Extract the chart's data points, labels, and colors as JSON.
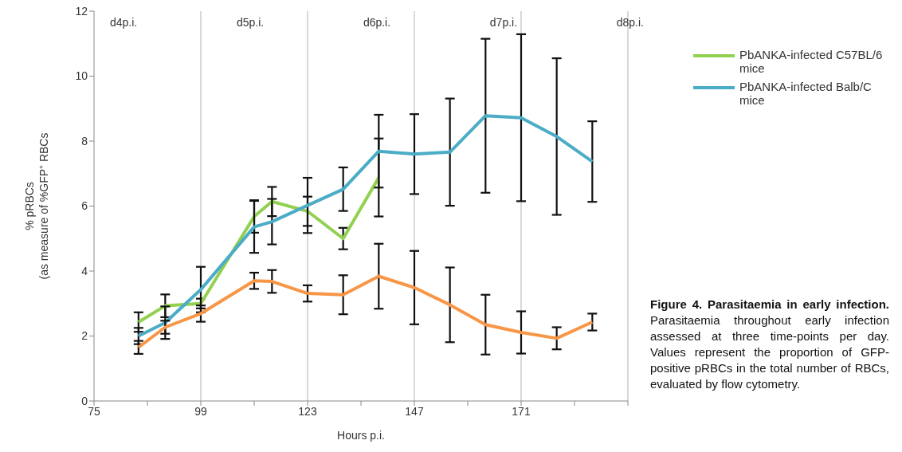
{
  "chart_data": {
    "type": "line",
    "xlabel": "Hours p.i.",
    "ylabel": "% pRBCs\n(as measure of %GFP⁺ RBCs",
    "x": [
      85,
      91,
      99,
      111,
      115,
      123,
      131,
      139,
      147,
      155,
      163,
      171,
      179,
      187
    ],
    "series": [
      {
        "name": "PbANKA-infected C57BL/6 mice",
        "color": "#92d050",
        "values": [
          2.43,
          2.93,
          3.0,
          5.68,
          6.14,
          5.84,
          5.0,
          6.88,
          null,
          null,
          null,
          null,
          null,
          null
        ],
        "errors": [
          0.3,
          0.35,
          0.15,
          0.5,
          0.45,
          0.45,
          0.33,
          1.2,
          null,
          null,
          null,
          null,
          null,
          null
        ]
      },
      {
        "name": "PbANKA-infected Balb/C mice",
        "color": "#4bacc6",
        "values": [
          2.0,
          2.41,
          3.43,
          5.36,
          5.52,
          6.02,
          6.52,
          7.69,
          7.6,
          7.66,
          8.78,
          8.72,
          8.14,
          7.37
        ],
        "errors": [
          0.25,
          0.5,
          0.7,
          0.8,
          0.7,
          0.85,
          0.67,
          1.12,
          1.23,
          1.65,
          2.37,
          2.57,
          2.41,
          1.24
        ]
      },
      {
        "color": "#f79646",
        "values": [
          1.65,
          2.27,
          2.69,
          3.7,
          3.68,
          3.31,
          3.27,
          3.84,
          3.49,
          2.96,
          2.35,
          2.11,
          1.93,
          2.43
        ],
        "errors": [
          0.2,
          0.2,
          0.25,
          0.25,
          0.35,
          0.25,
          0.6,
          1.0,
          1.13,
          1.15,
          0.92,
          0.65,
          0.34,
          0.26
        ]
      }
    ],
    "xlim": [
      75,
      195
    ],
    "xticks": [
      75,
      {
        "value": 87,
        "label": null
      },
      99,
      {
        "value": 111,
        "label": null
      },
      123,
      {
        "value": 135,
        "label": null
      },
      147,
      {
        "value": 159,
        "label": null
      },
      171,
      {
        "value": 183,
        "label": null
      },
      {
        "value": 195,
        "label": null
      }
    ],
    "ylim": [
      0,
      12
    ],
    "yticks": [
      0,
      2,
      4,
      6,
      8,
      10,
      12
    ],
    "grid": "x",
    "legend": "top right",
    "marker": "none",
    "line_style": "solid",
    "annotations": [
      "d4p.i.",
      "d5p.i.",
      "d6p.i.",
      "d7p.i.",
      "d8p.i.",
      "Figure 4. Parasitaemia in early infection.",
      "Parasitaemia throughout early infection assessed at three time-points per day. Values represent the proportion of GFP-positive pRBCs in the total number of RBCs, evaluated by flow cytometry."
    ]
  }
}
